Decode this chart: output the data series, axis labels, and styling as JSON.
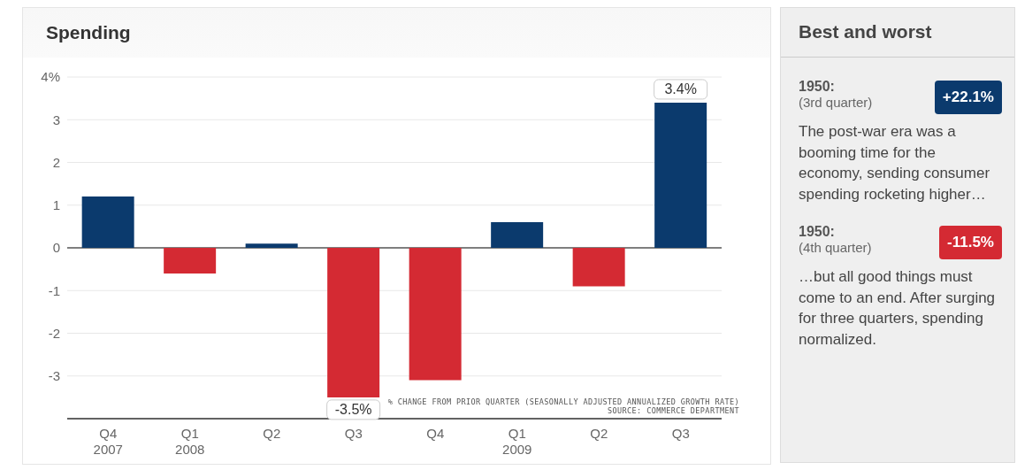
{
  "chart_data": [
    {
      "type": "bar",
      "title": "Spending",
      "categories": [
        "Q4\n2007",
        "Q1\n2008",
        "Q2",
        "Q3",
        "Q4",
        "Q1\n2009",
        "Q2",
        "Q3"
      ],
      "values": [
        1.2,
        -0.6,
        0.1,
        -3.5,
        -3.1,
        0.6,
        -0.9,
        3.4
      ],
      "colors": [
        "#0b3a6d",
        "#d42a33",
        "#0b3a6d",
        "#d42a33",
        "#d42a33",
        "#0b3a6d",
        "#d42a33",
        "#0b3a6d"
      ],
      "value_labels": [
        null,
        null,
        null,
        "-3.5%",
        null,
        null,
        null,
        "3.4%"
      ],
      "ylim": [
        -4,
        4
      ],
      "yticks": [
        -3,
        -2,
        -1,
        0,
        1,
        2,
        3,
        {
          "value": 4,
          "label": "4%"
        }
      ],
      "grid": "y",
      "annotations": [
        "% CHANGE FROM PRIOR QUARTER (SEASONALLY ADJUSTED ANNUALIZED GROWTH RATE)",
        "SOURCE: COMMERCE DEPARTMENT"
      ]
    },
    {
      "type": "other",
      "title": "Best and worst",
      "colors": [
        "#0b3a6d",
        "#d42a33"
      ],
      "annotations": [
        "1950:",
        "(3rd quarter)",
        "+22.1%",
        "The post-war era was a booming time for the economy, sending consumer spending rocketing higher…",
        "1950:",
        "(4th quarter)",
        "-11.5%",
        "…but all good things must come to an end. After surging for three quarters, spending normalized."
      ]
    }
  ]
}
